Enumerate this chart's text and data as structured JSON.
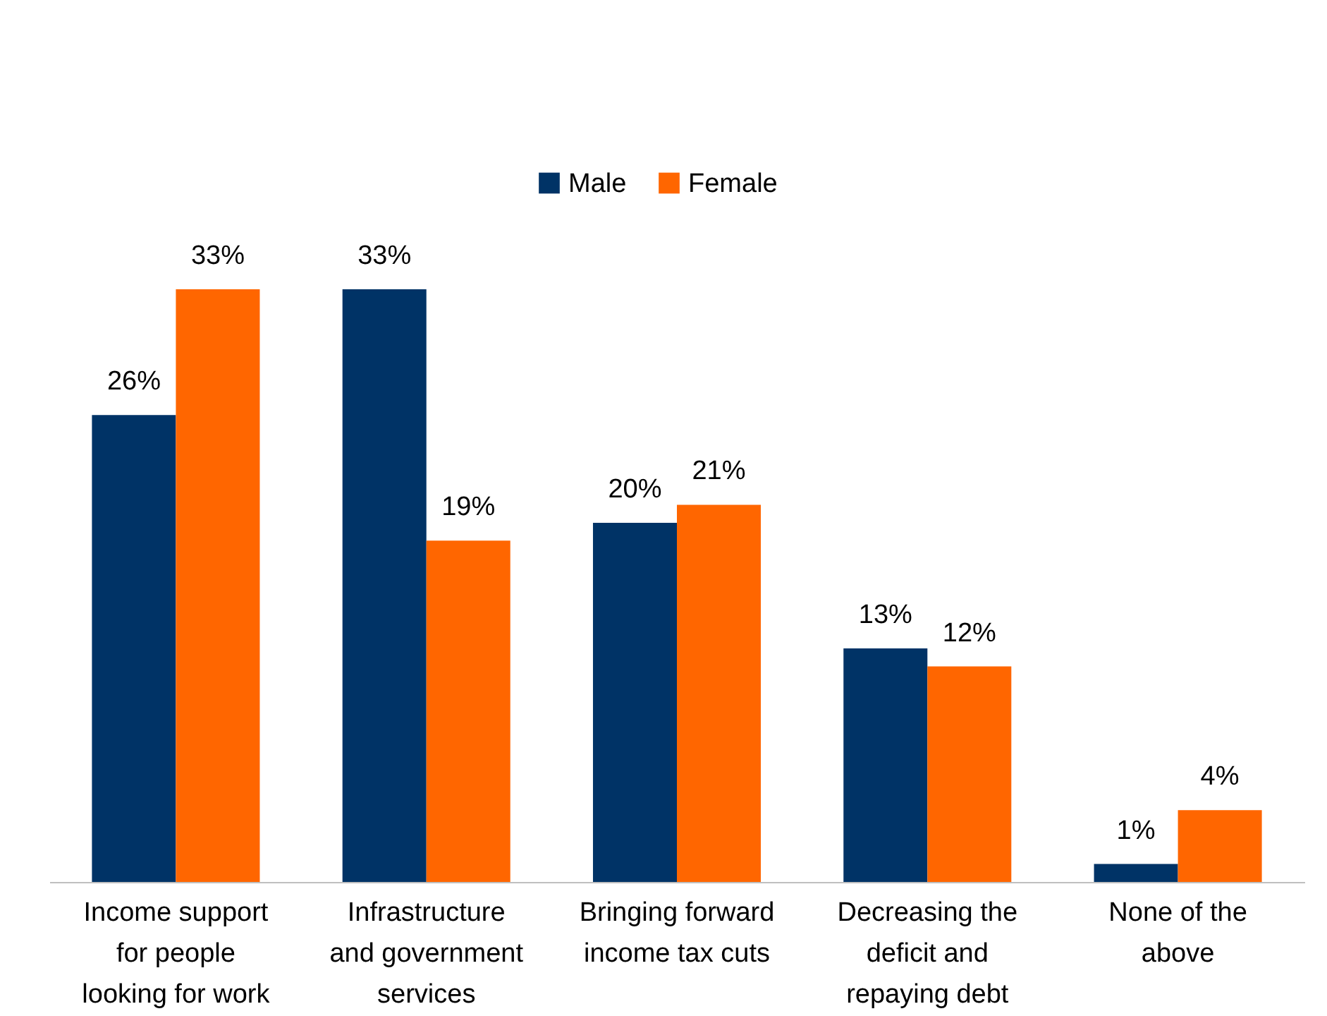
{
  "chart_data": {
    "type": "bar",
    "categories": [
      "Income support for people looking for work",
      "Infrastructure and government services",
      "Bringing forward income tax cuts",
      "Decreasing the deficit and repaying debt",
      "None of the above"
    ],
    "series": [
      {
        "name": "Male",
        "color": "#003366",
        "values": [
          26,
          33,
          20,
          13,
          1
        ],
        "value_labels": [
          "26%",
          "33%",
          "20%",
          "13%",
          "1%"
        ]
      },
      {
        "name": "Female",
        "color": "#ff6600",
        "values": [
          33,
          19,
          21,
          12,
          4
        ],
        "value_labels": [
          "33%",
          "19%",
          "21%",
          "12%",
          "4%"
        ]
      }
    ],
    "legend": "top",
    "grid": false
  }
}
